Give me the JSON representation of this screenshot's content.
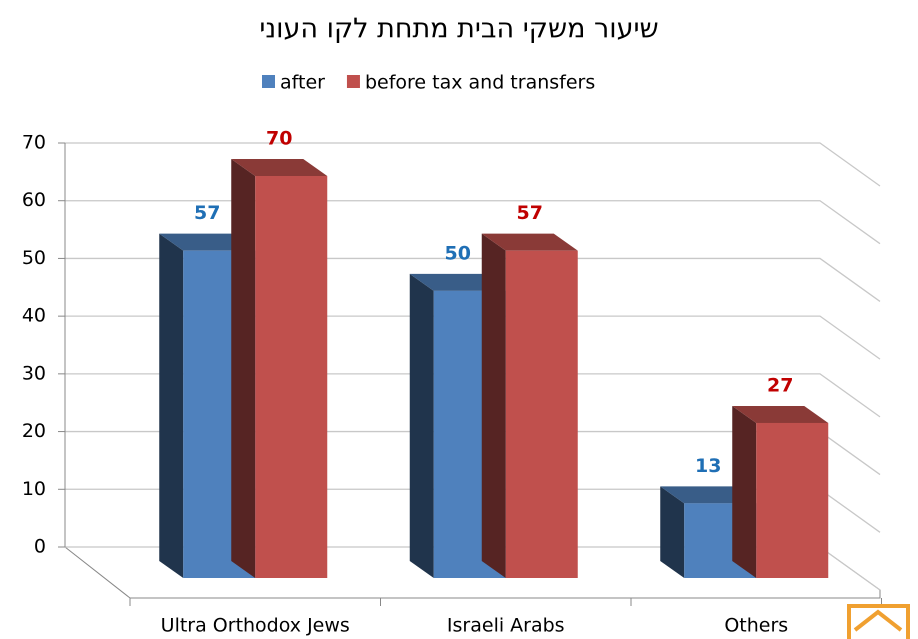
{
  "chart_data": {
    "type": "bar3d",
    "title": "שיעור משקי הבית מתחת לקו העוני",
    "categories": [
      "Ultra Orthodox Jews",
      "Israeli Arabs",
      "Others"
    ],
    "series": [
      {
        "name": "after",
        "color": "#4f81bd",
        "values": [
          57,
          50,
          13
        ]
      },
      {
        "name": "before tax and transfers",
        "color": "#c0504d",
        "values": [
          70,
          57,
          27
        ]
      }
    ],
    "ylim": [
      0,
      70
    ],
    "yticks": [
      0,
      10,
      20,
      30,
      40,
      50,
      60,
      70
    ],
    "grid": true,
    "legend": "top"
  }
}
